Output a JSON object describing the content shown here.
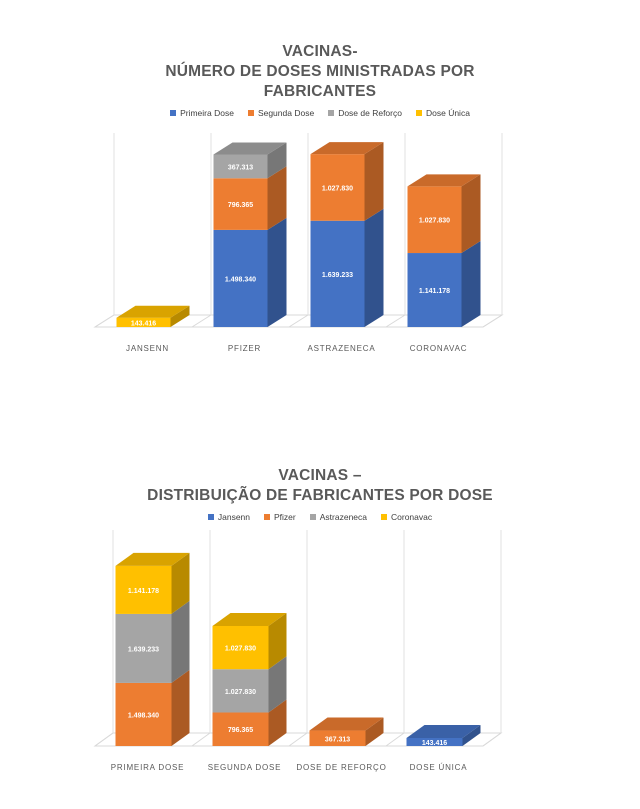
{
  "chart_data": [
    {
      "type": "bar",
      "stacked": true,
      "title_lines": [
        "VACINAS-",
        "NÚMERO DE DOSES MINISTRADAS POR",
        "FABRICANTES"
      ],
      "categories": [
        "JANSENN",
        "PFIZER",
        "ASTRAZENECA",
        "CORONAVAC"
      ],
      "series": [
        {
          "name": "Primeira Dose",
          "color": "#4472C4",
          "values": [
            0,
            1498340,
            1639233,
            1141178
          ],
          "labels": [
            "",
            "1.498.340",
            "1.639.233",
            "1.141.178"
          ]
        },
        {
          "name": "Segunda Dose",
          "color": "#ED7D31",
          "values": [
            0,
            796365,
            1027830,
            1027830
          ],
          "labels": [
            "",
            "796.365",
            "1.027.830",
            "1.027.830"
          ]
        },
        {
          "name": "Dose de Reforço",
          "color": "#A5A5A5",
          "values": [
            0,
            367313,
            0,
            0
          ],
          "labels": [
            "",
            "367.313",
            "",
            ""
          ]
        },
        {
          "name": "Dose Única",
          "color": "#FFC000",
          "values": [
            143416,
            0,
            0,
            0
          ],
          "labels": [
            "143.416",
            "",
            "",
            ""
          ]
        }
      ],
      "legend": "top",
      "grid": true
    },
    {
      "type": "bar",
      "stacked": true,
      "title_lines": [
        "VACINAS –",
        "DISTRIBUIÇÃO DE FABRICANTES POR DOSE"
      ],
      "categories": [
        "PRIMEIRA DOSE",
        "SEGUNDA DOSE",
        "DOSE DE REFORÇO",
        "DOSE ÚNICA"
      ],
      "series": [
        {
          "name": "Jansenn",
          "color": "#4472C4",
          "values": [
            0,
            0,
            0,
            143416
          ],
          "labels": [
            "",
            "",
            "",
            "143.416"
          ]
        },
        {
          "name": "Pfizer",
          "color": "#ED7D31",
          "values": [
            1498340,
            796365,
            367313,
            0
          ],
          "labels": [
            "1.498.340",
            "796.365",
            "367.313",
            ""
          ]
        },
        {
          "name": "Astrazeneca",
          "color": "#A5A5A5",
          "values": [
            1639233,
            1027830,
            0,
            0
          ],
          "labels": [
            "1.639.233",
            "1.027.830",
            "",
            ""
          ]
        },
        {
          "name": "Coronavac",
          "color": "#FFC000",
          "values": [
            1141178,
            1027830,
            0,
            0
          ],
          "labels": [
            "1.141.178",
            "1.027.830",
            "",
            ""
          ]
        }
      ],
      "legend": "top",
      "grid": true
    }
  ]
}
